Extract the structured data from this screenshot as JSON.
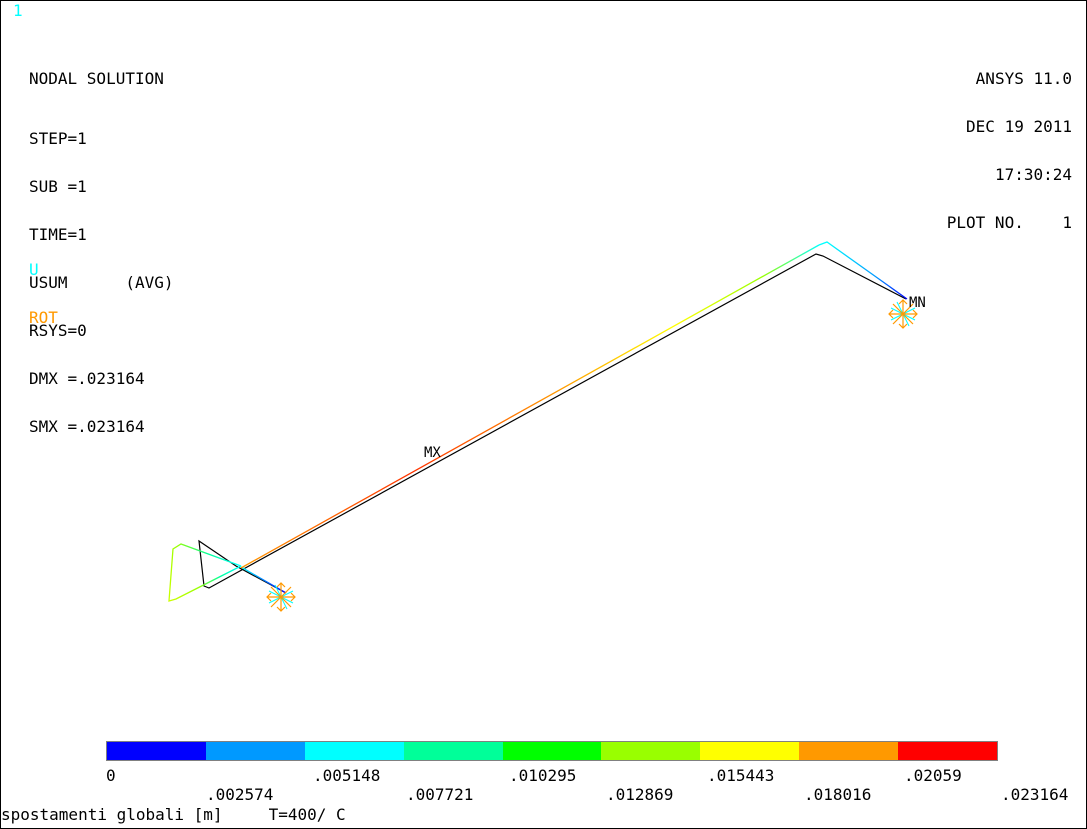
{
  "window_number": "1",
  "info_left": {
    "title": "NODAL SOLUTION",
    "lines": [
      "STEP=1",
      "SUB =1",
      "TIME=1",
      "USUM      (AVG)",
      "RSYS=0",
      "DMX =.023164",
      "SMX =.023164"
    ]
  },
  "info_right": {
    "lines": [
      "ANSYS 11.0",
      "DEC 19 2011",
      "17:30:24",
      "PLOT NO.    1"
    ]
  },
  "legend": {
    "u_label": "U",
    "rot_label": "ROT",
    "u_color": "#00ffff",
    "rot_color": "#ff9900"
  },
  "markers": {
    "mx": "MX",
    "mn": "MN"
  },
  "colorbar": {
    "colors": [
      "#0000ff",
      "#0099ff",
      "#00ffff",
      "#00ff99",
      "#00ff00",
      "#99ff00",
      "#ffff00",
      "#ff9900",
      "#ff0000"
    ],
    "top_labels": [
      "0",
      ".005148",
      ".010295",
      ".015443",
      ".02059"
    ],
    "bottom_labels": [
      ".002574",
      ".007721",
      ".012869",
      ".018016",
      ".023164"
    ]
  },
  "footer": {
    "description": "spostamenti globali [m]",
    "temperature": "T=400/ C"
  },
  "colors": {
    "undeformed": "#000000",
    "background": "#ffffff"
  }
}
